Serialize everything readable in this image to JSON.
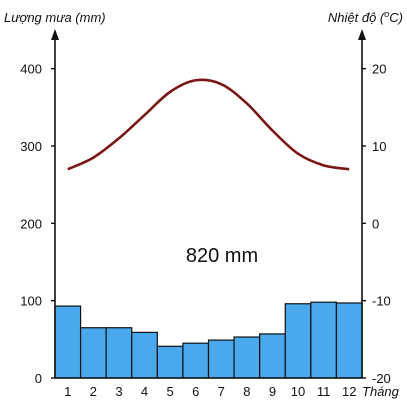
{
  "chart_data": {
    "type": "bar+line",
    "left_axis": {
      "label": "Lượng mưa (mm)",
      "ticks": [
        0,
        100,
        200,
        300,
        400
      ],
      "range": [
        0,
        450
      ]
    },
    "right_axis": {
      "label_main": "Nhiệt độ (",
      "label_sup": "o",
      "label_end": "C)",
      "ticks": [
        -20,
        -10,
        0,
        10,
        20
      ],
      "range": [
        -20,
        25
      ]
    },
    "x_axis": {
      "label": "Tháng",
      "categories": [
        "1",
        "2",
        "3",
        "4",
        "5",
        "6",
        "7",
        "8",
        "9",
        "10",
        "11",
        "12"
      ]
    },
    "annotation": "820 mm",
    "series": [
      {
        "type": "bar",
        "axis": "left",
        "color": "#4aa8ec",
        "values": [
          93,
          65,
          65,
          59,
          41,
          45,
          49,
          53,
          57,
          96,
          98,
          97
        ]
      },
      {
        "type": "line",
        "axis": "right",
        "color": "#7a1614",
        "values": [
          7,
          8.5,
          11,
          14,
          17,
          18.5,
          18,
          15.5,
          12,
          9,
          7.5,
          7
        ]
      }
    ],
    "grid": false
  }
}
